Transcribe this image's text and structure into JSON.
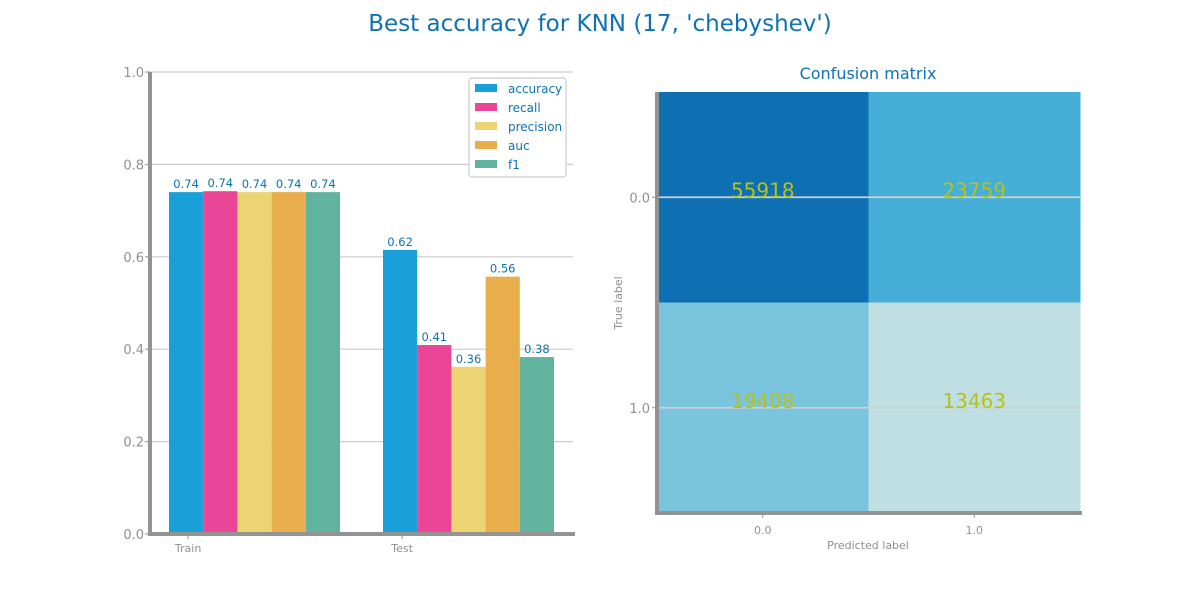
{
  "figure": {
    "title": "Best accuracy for KNN (17, 'chebyshev')"
  },
  "chart_data": [
    {
      "type": "bar",
      "title": "",
      "xlabel": "",
      "ylabel": "",
      "ylim": [
        0,
        1.0
      ],
      "yticks": [
        0.0,
        0.2,
        0.4,
        0.6,
        0.8,
        1.0
      ],
      "grid": "y",
      "legend_position": "top-right",
      "categories": [
        "Train",
        "Test"
      ],
      "series": [
        {
          "name": "accuracy",
          "color": "#1aa0d8",
          "values": [
            0.74,
            0.615
          ],
          "labels": [
            "0.74",
            "0.62"
          ]
        },
        {
          "name": "recall",
          "color": "#ea4597",
          "values": [
            0.742,
            0.409
          ],
          "labels": [
            "0.74",
            "0.41"
          ]
        },
        {
          "name": "precision",
          "color": "#ecd473",
          "values": [
            0.74,
            0.362
          ],
          "labels": [
            "0.74",
            "0.36"
          ]
        },
        {
          "name": "auc",
          "color": "#e8ae4c",
          "values": [
            0.74,
            0.557
          ],
          "labels": [
            "0.74",
            "0.56"
          ]
        },
        {
          "name": "f1",
          "color": "#62b39d",
          "values": [
            0.74,
            0.383
          ],
          "labels": [
            "0.74",
            "0.38"
          ]
        }
      ]
    },
    {
      "type": "heatmap",
      "title": "Confusion matrix",
      "xlabel": "Predicted label",
      "ylabel": "True label",
      "x_categories": [
        "0.0",
        "1.0"
      ],
      "y_categories": [
        "0.0",
        "1.0"
      ],
      "grid": "y",
      "values": [
        [
          55918,
          23759
        ],
        [
          19408,
          13463
        ]
      ],
      "colors": [
        [
          "#0e70b3",
          "#45afd8"
        ],
        [
          "#7ac4de",
          "#bfdfe3"
        ]
      ]
    }
  ]
}
